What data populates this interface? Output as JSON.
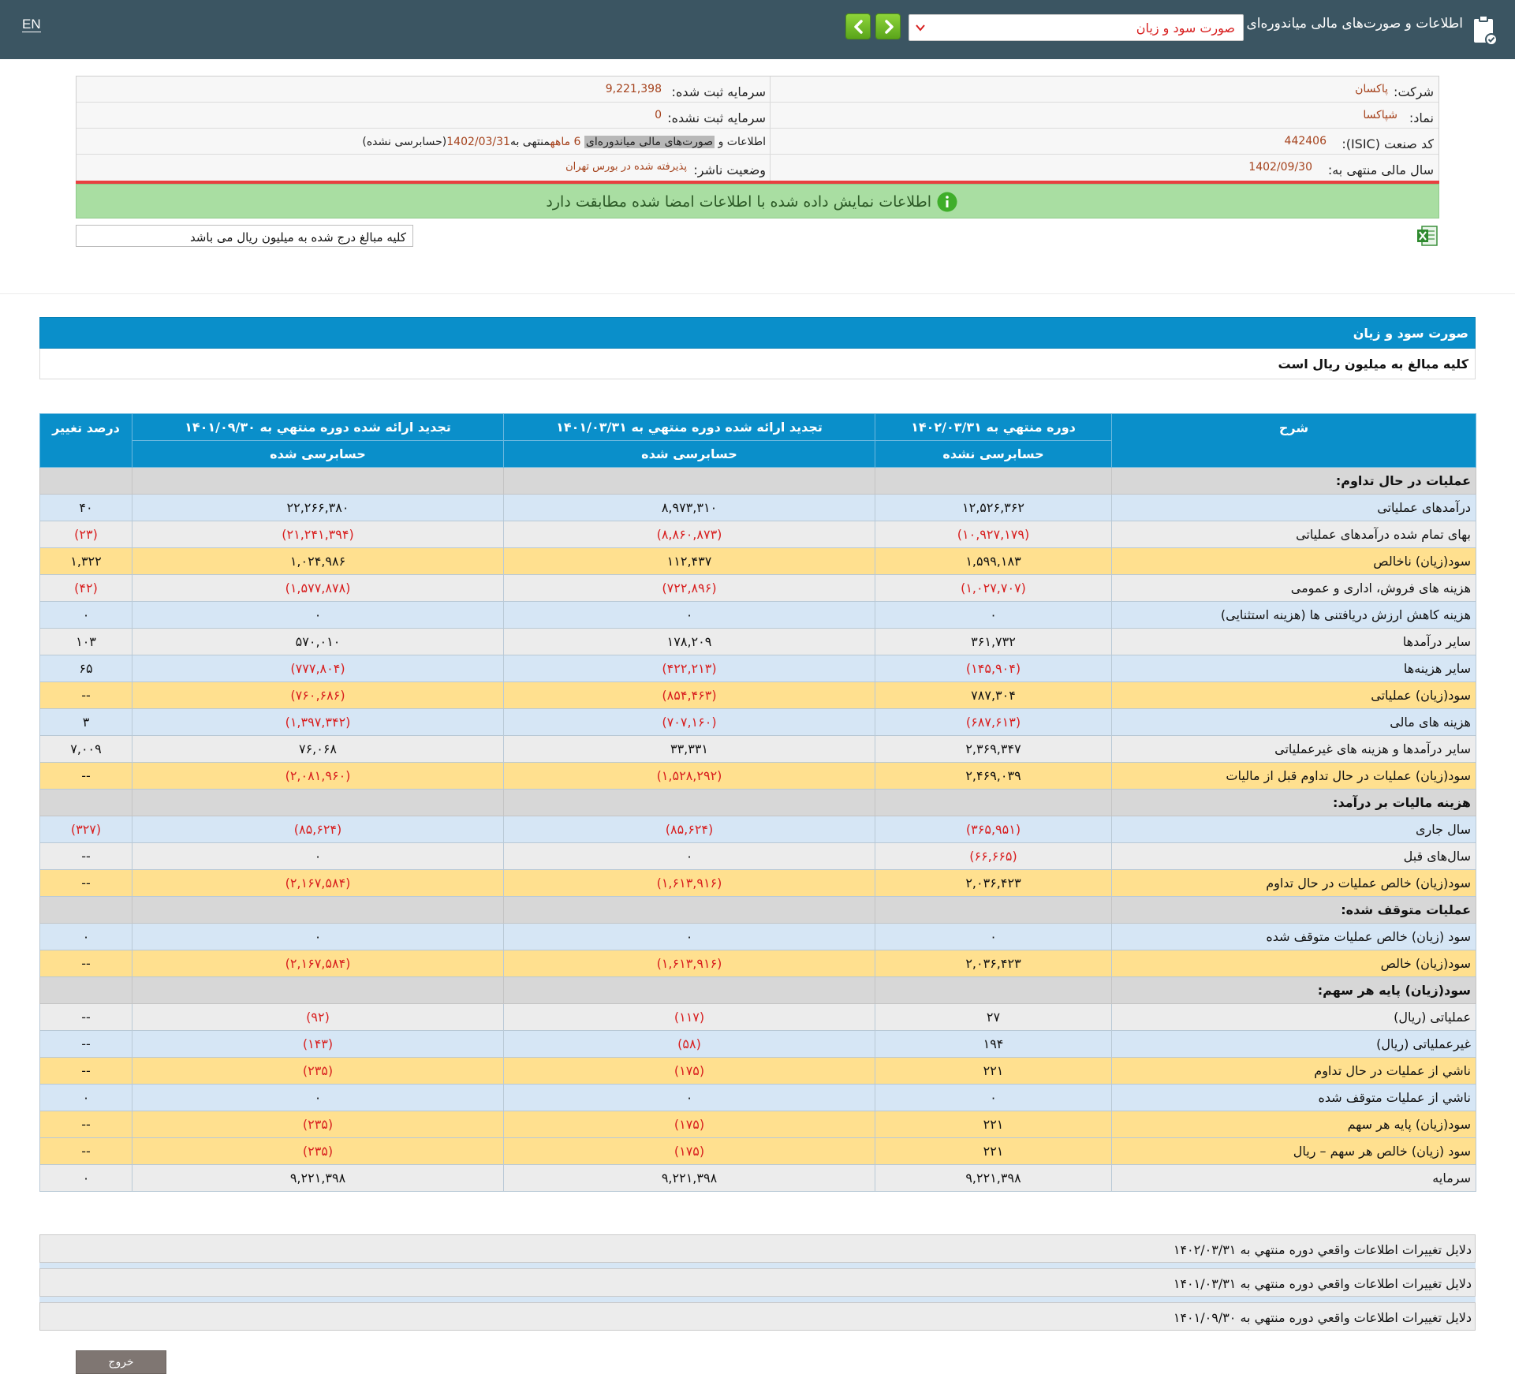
{
  "header": {
    "lang": "EN",
    "app_title": "اطلاعات و صورت‌های مالی میاندوره‌ای",
    "report_select_value": "صورت سود و زیان",
    "icons": {
      "doc": "document-check-icon",
      "next": "chevron-right-icon",
      "prev": "chevron-left-icon",
      "caret": "chevron-down-icon"
    },
    "accent_color": "#3b5562"
  },
  "company": {
    "name_label": "شرکت:",
    "name_value": "پاکسان",
    "symbol_label": "نماد:",
    "symbol_value": "شپاکسا",
    "isic_label": "کد صنعت (ISIC):",
    "isic_value": "442406",
    "fiscal_label": "سال مالی منتهی به:",
    "fiscal_value": "1402/09/30",
    "capital_label": "سرمایه ثبت شده:",
    "capital_value": "9,221,398",
    "unreg_capital_label": "سرمایه ثبت نشده:",
    "unreg_capital_value": "0",
    "report_desc_prefix": "اطلاعات و",
    "report_desc_highlight": "صورت‌های مالی میاندوره‌ای",
    "report_desc_months": "6 ماهه",
    "report_desc_ending": "منتهی به",
    "report_desc_date": "1402/03/31",
    "report_desc_audit": "(حسابرسی نشده)",
    "status_label": "وضعیت ناشر:",
    "status_value": "پذیرفته شده در بورس تهران"
  },
  "notice": "اطلاعات نمایش داده شده با اطلاعات امضا شده مطابقت دارد",
  "unit_note": "کلیه مبالغ درج شده به میلیون ریال می باشد",
  "statement": {
    "title": "صورت سود و زیان",
    "subtitle": "کلیه مبالغ به میلیون ریال است",
    "columns": {
      "desc": "شرح",
      "current": "دوره منتهي به ۱۴۰۲/۰۳/۳۱",
      "current_audit": "حسابرسی نشده",
      "prior1": "تجدید ارائه شده دوره منتهي به ۱۴۰۱/۰۳/۳۱",
      "prior1_audit": "حسابرسی شده",
      "prior2": "تجدید ارائه شده دوره منتهي به ۱۴۰۱/۰۹/۳۰",
      "prior2_audit": "حسابرسی شده",
      "change": "درصد تغيير"
    },
    "rows": [
      {
        "type": "sec",
        "desc": "عملیات در حال تداوم:",
        "v1": "",
        "v2": "",
        "v3": "",
        "v4": ""
      },
      {
        "type": "blue",
        "desc": "درآمدهای عملیاتی",
        "v1": "۱۲,۵۲۶,۳۶۲",
        "v2": "۸,۹۷۳,۳۱۰",
        "v3": "۲۲,۲۶۶,۳۸۰",
        "v4": "۴۰"
      },
      {
        "type": "gray",
        "desc": "بهای تمام شده درآمدهای عملیاتی",
        "v1": "(۱۰,۹۲۷,۱۷۹)",
        "v2": "(۸,۸۶۰,۸۷۳)",
        "v3": "(۲۱,۲۴۱,۳۹۴)",
        "v4": "(۲۳)"
      },
      {
        "type": "gold",
        "desc": "سود(زيان) ناخالص",
        "v1": "۱,۵۹۹,۱۸۳",
        "v2": "۱۱۲,۴۳۷",
        "v3": "۱,۰۲۴,۹۸۶",
        "v4": "۱,۳۲۲"
      },
      {
        "type": "gray",
        "desc": "هزينه های فروش، اداری و عمومی",
        "v1": "(۱,۰۲۷,۷۰۷)",
        "v2": "(۷۲۲,۸۹۶)",
        "v3": "(۱,۵۷۷,۸۷۸)",
        "v4": "(۴۲)"
      },
      {
        "type": "blue",
        "desc": "هزینه کاهش ارزش دریافتنی ها (هزینه استثنایی)",
        "v1": "۰",
        "v2": "۰",
        "v3": "۰",
        "v4": "۰"
      },
      {
        "type": "gray",
        "desc": "ساير درآمدها",
        "v1": "۳۶۱,۷۳۲",
        "v2": "۱۷۸,۲۰۹",
        "v3": "۵۷۰,۰۱۰",
        "v4": "۱۰۳"
      },
      {
        "type": "blue",
        "desc": "سایر هزينه‌ها",
        "v1": "(۱۴۵,۹۰۴)",
        "v2": "(۴۲۲,۲۱۳)",
        "v3": "(۷۷۷,۸۰۴)",
        "v4": "۶۵"
      },
      {
        "type": "gold",
        "desc": "سود(زيان) عملياتی",
        "v1": "۷۸۷,۳۰۴",
        "v2": "(۸۵۴,۴۶۳)",
        "v3": "(۷۶۰,۶۸۶)",
        "v4": "--"
      },
      {
        "type": "blue",
        "desc": "هزينه های مالی",
        "v1": "(۶۸۷,۶۱۳)",
        "v2": "(۷۰۷,۱۶۰)",
        "v3": "(۱,۳۹۷,۳۴۲)",
        "v4": "۳"
      },
      {
        "type": "gray",
        "desc": "ساير درآمدها و هزينه های غيرعملياتی",
        "v1": "۲,۳۶۹,۳۴۷",
        "v2": "۳۳,۳۳۱",
        "v3": "۷۶,۰۶۸",
        "v4": "۷,۰۰۹"
      },
      {
        "type": "gold",
        "desc": "سود(زيان) عمليات در حال تداوم قبل از ماليات",
        "v1": "۲,۴۶۹,۰۳۹",
        "v2": "(۱,۵۲۸,۲۹۲)",
        "v3": "(۲,۰۸۱,۹۶۰)",
        "v4": "--"
      },
      {
        "type": "sec",
        "desc": "هزینه مالیات بر درآمد:",
        "v1": "",
        "v2": "",
        "v3": "",
        "v4": ""
      },
      {
        "type": "blue",
        "desc": "سال جاری",
        "v1": "(۳۶۵,۹۵۱)",
        "v2": "(۸۵,۶۲۴)",
        "v3": "(۸۵,۶۲۴)",
        "v4": "(۳۲۷)"
      },
      {
        "type": "gray",
        "desc": "سال‌های قبل",
        "v1": "(۶۶,۶۶۵)",
        "v2": "۰",
        "v3": "۰",
        "v4": "--"
      },
      {
        "type": "gold",
        "desc": "سود(زيان) خالص عمليات در حال تداوم",
        "v1": "۲,۰۳۶,۴۲۳",
        "v2": "(۱,۶۱۳,۹۱۶)",
        "v3": "(۲,۱۶۷,۵۸۴)",
        "v4": "--"
      },
      {
        "type": "sec",
        "desc": "عملیات متوقف شده:",
        "v1": "",
        "v2": "",
        "v3": "",
        "v4": ""
      },
      {
        "type": "blue",
        "desc": "سود (زيان) خالص عمليات متوقف شده",
        "v1": "۰",
        "v2": "۰",
        "v3": "۰",
        "v4": "۰"
      },
      {
        "type": "gold",
        "desc": "سود(زيان) خالص",
        "v1": "۲,۰۳۶,۴۲۳",
        "v2": "(۱,۶۱۳,۹۱۶)",
        "v3": "(۲,۱۶۷,۵۸۴)",
        "v4": "--"
      },
      {
        "type": "sec",
        "desc": "سود(زيان) پایه هر سهم:",
        "v1": "",
        "v2": "",
        "v3": "",
        "v4": ""
      },
      {
        "type": "gray",
        "desc": "عملیاتی (ریال)",
        "v1": "۲۷",
        "v2": "(۱۱۷)",
        "v3": "(۹۲)",
        "v4": "--"
      },
      {
        "type": "blue",
        "desc": "غیرعملیاتی (ریال)",
        "v1": "۱۹۴",
        "v2": "(۵۸)",
        "v3": "(۱۴۳)",
        "v4": "--"
      },
      {
        "type": "gold",
        "desc": "ناشي از عمليات در حال تداوم",
        "v1": "۲۲۱",
        "v2": "(۱۷۵)",
        "v3": "(۲۳۵)",
        "v4": "--"
      },
      {
        "type": "blue",
        "desc": "ناشي از عمليات متوقف شده",
        "v1": "۰",
        "v2": "۰",
        "v3": "۰",
        "v4": "۰"
      },
      {
        "type": "gold",
        "desc": "سود(زيان) پايه هر سهم",
        "v1": "۲۲۱",
        "v2": "(۱۷۵)",
        "v3": "(۲۳۵)",
        "v4": "--"
      },
      {
        "type": "gold",
        "desc": "سود (زيان) خالص هر سهم – ريال",
        "v1": "۲۲۱",
        "v2": "(۱۷۵)",
        "v3": "(۲۳۵)",
        "v4": "--"
      },
      {
        "type": "gray",
        "desc": "سرمايه",
        "v1": "۹,۲۲۱,۳۹۸",
        "v2": "۹,۲۲۱,۳۹۸",
        "v3": "۹,۲۲۱,۳۹۸",
        "v4": "۰"
      }
    ]
  },
  "reasons": [
    "دلایل تغییرات اطلاعات واقعي دوره منتهي به ۱۴۰۲/۰۳/۳۱",
    "دلایل تغییرات اطلاعات واقعي دوره منتهي به ۱۴۰۱/۰۳/۳۱",
    "دلایل تغییرات اطلاعات واقعي دوره منتهي به ۱۴۰۱/۰۹/۳۰"
  ],
  "exit_label": "خروج",
  "colors": {
    "statement_header": "#0a8fca",
    "negative": "#d81e1e",
    "row_blue": "#d6e6f5",
    "row_gold": "#ffe08f",
    "notice_bg": "#a9dea2"
  }
}
